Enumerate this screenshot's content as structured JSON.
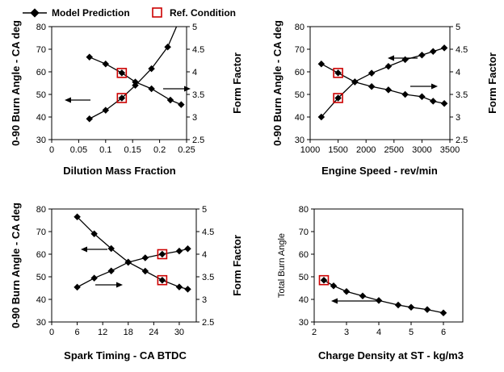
{
  "legend": {
    "model_label": "Model Prediction",
    "ref_label": "Ref. Condition",
    "model_color": "#000000",
    "ref_color": "#cc0000"
  },
  "chart_data": [
    {
      "id": "dilution",
      "type": "line",
      "xlabel": "Dilution Mass Fraction",
      "ylabel": "0-90 Burn Angle - CA deg",
      "y2label": "Form Factor",
      "xlim": [
        0,
        0.25
      ],
      "xticks": [
        0,
        0.05,
        0.1,
        0.15,
        0.2,
        0.25
      ],
      "ylim": [
        30,
        80
      ],
      "yticks": [
        30,
        40,
        50,
        60,
        70,
        80
      ],
      "y2lim": [
        2.5,
        5
      ],
      "y2ticks": [
        2.5,
        3,
        3.5,
        4,
        4.5,
        5
      ],
      "arrows": [
        "left",
        "right"
      ],
      "series": [
        {
          "axis": "y1",
          "x": [
            0.07,
            0.1,
            0.13,
            0.155,
            0.185,
            0.22,
            0.24
          ],
          "values": [
            66.5,
            63.5,
            59.5,
            55.5,
            52.5,
            47.5,
            45.5
          ]
        },
        {
          "axis": "y2",
          "x": [
            0.07,
            0.1,
            0.13,
            0.155,
            0.185,
            0.215
          ],
          "values": [
            2.96,
            3.15,
            3.42,
            3.7,
            4.07,
            4.55
          ]
        }
      ],
      "reference": [
        {
          "axis": "y1",
          "x": 0.13,
          "y": 59.5
        },
        {
          "axis": "y2",
          "x": 0.13,
          "y": 3.42
        }
      ]
    },
    {
      "id": "speed",
      "type": "line",
      "xlabel": "Engine Speed - rev/min",
      "ylabel": "0-90 Burn Angle - CA deg",
      "y2label": "Form Factor",
      "xlim": [
        1000,
        3500
      ],
      "xticks": [
        1000,
        1500,
        2000,
        2500,
        3000,
        3500
      ],
      "ylim": [
        30,
        80
      ],
      "yticks": [
        30,
        40,
        50,
        60,
        70,
        80
      ],
      "y2lim": [
        2.5,
        5
      ],
      "y2ticks": [
        2.5,
        3,
        3.5,
        4,
        4.5,
        5
      ],
      "arrows": [
        "left",
        "right"
      ],
      "series": [
        {
          "axis": "y1",
          "x": [
            1200,
            1500,
            1800,
            2100,
            2400,
            2700,
            3000,
            3200,
            3400
          ],
          "values": [
            63.5,
            59.5,
            55.5,
            53.5,
            52,
            50,
            49,
            47,
            46
          ]
        },
        {
          "axis": "y2",
          "x": [
            1200,
            1500,
            1800,
            2100,
            2400,
            2700,
            3000,
            3200,
            3400
          ],
          "values": [
            3.0,
            3.42,
            3.78,
            3.97,
            4.12,
            4.27,
            4.37,
            4.45,
            4.53
          ]
        }
      ],
      "reference": [
        {
          "axis": "y1",
          "x": 1500,
          "y": 59.5
        },
        {
          "axis": "y2",
          "x": 1500,
          "y": 3.42
        }
      ]
    },
    {
      "id": "spark",
      "type": "line",
      "xlabel": "Spark Timing - CA BTDC",
      "ylabel": "0-90 Burn Angle - CA deg",
      "y2label": "Form Factor",
      "xlim": [
        0,
        34
      ],
      "xticks": [
        0,
        6,
        12,
        18,
        24,
        30
      ],
      "ylim": [
        30,
        80
      ],
      "yticks": [
        30,
        40,
        50,
        60,
        70,
        80
      ],
      "y2lim": [
        2.5,
        5
      ],
      "y2ticks": [
        2.5,
        3,
        3.5,
        4,
        4.5,
        5
      ],
      "arrows": [
        "left",
        "right"
      ],
      "series": [
        {
          "axis": "y1",
          "x": [
            6,
            10,
            14,
            18,
            22,
            26,
            30,
            32
          ],
          "values": [
            76.5,
            69,
            62.5,
            56.5,
            52.5,
            48.5,
            45.5,
            44.5
          ]
        },
        {
          "axis": "y2",
          "x": [
            6,
            10,
            14,
            18,
            22,
            26,
            30,
            32
          ],
          "values": [
            3.27,
            3.47,
            3.63,
            3.82,
            3.92,
            4.0,
            4.07,
            4.12
          ]
        }
      ],
      "reference": [
        {
          "axis": "y1",
          "x": 26,
          "y": 48.5
        },
        {
          "axis": "y2",
          "x": 26,
          "y": 4.0
        }
      ]
    },
    {
      "id": "density",
      "type": "line",
      "xlabel": "Charge Density at ST - kg/m3",
      "ylabel": "Total Burn Angle",
      "xlim": [
        2,
        6.6
      ],
      "xticks": [
        2,
        3,
        4,
        5,
        6
      ],
      "ylim": [
        30,
        80
      ],
      "yticks": [
        30,
        40,
        50,
        60,
        70,
        80
      ],
      "arrows": [
        "left"
      ],
      "series": [
        {
          "axis": "y1",
          "x": [
            2.3,
            2.6,
            3.0,
            3.5,
            4.0,
            4.6,
            5.0,
            5.5,
            6.0
          ],
          "values": [
            48.5,
            46,
            43.5,
            41.5,
            39.5,
            37.5,
            36.5,
            35.5,
            34
          ]
        }
      ],
      "reference": [
        {
          "axis": "y1",
          "x": 2.3,
          "y": 48.5
        }
      ]
    }
  ]
}
